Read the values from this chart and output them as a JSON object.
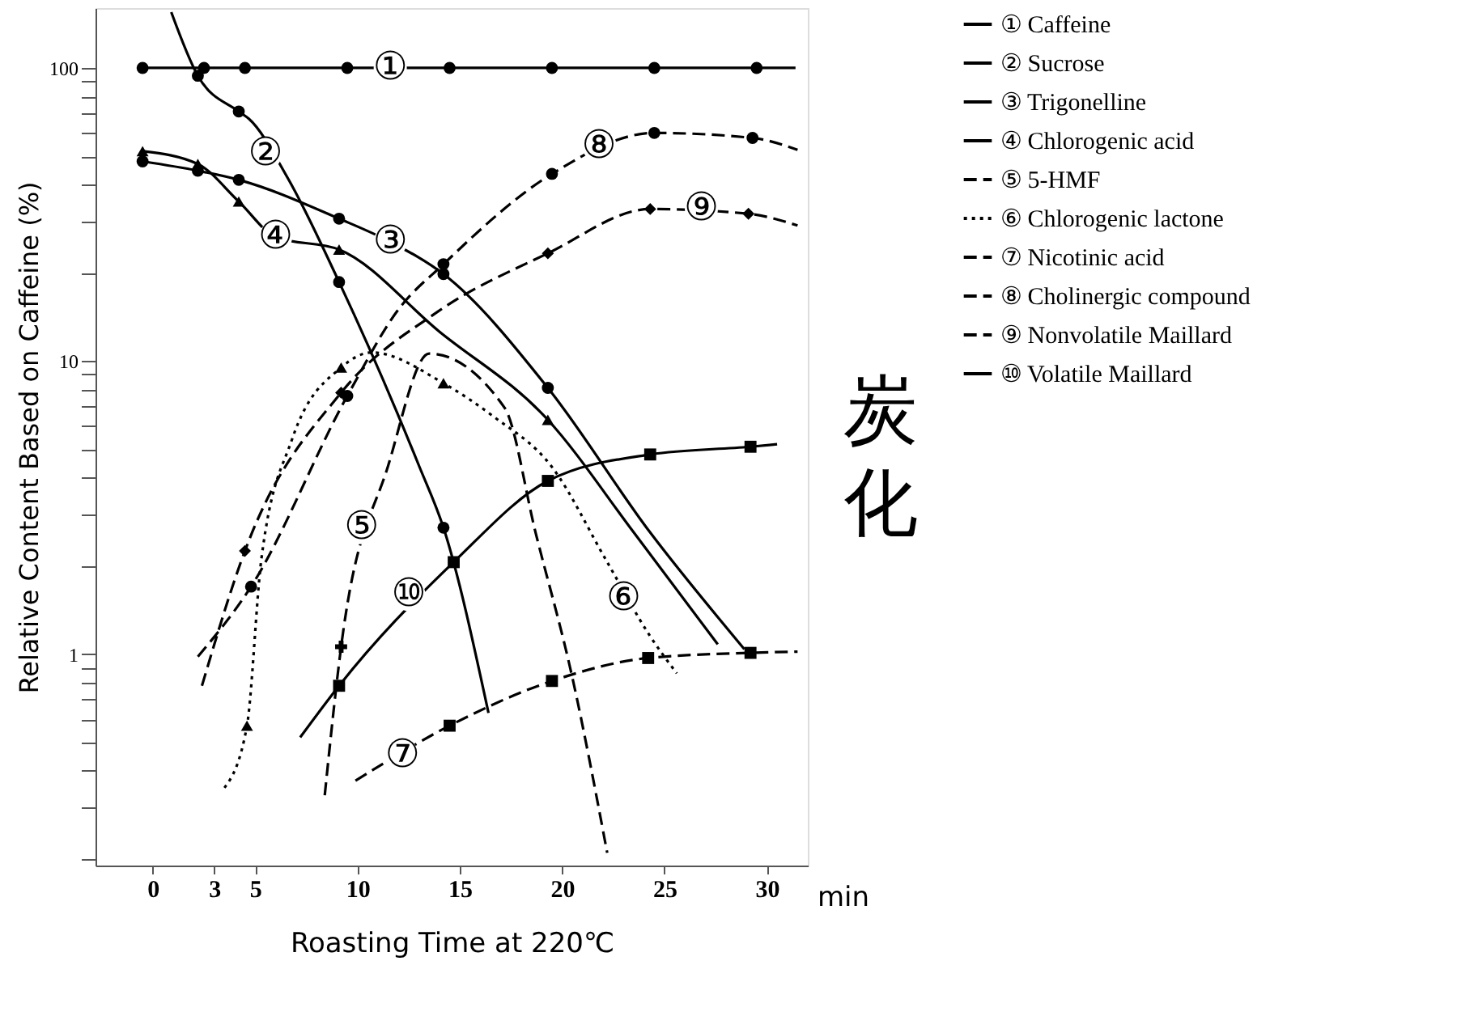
{
  "chart_data": {
    "type": "line",
    "xlabel": "Roasting Time at 220℃",
    "ylabel": "Relative Content Based on Caffeine (%)",
    "log": "y",
    "grid": false,
    "legend": "right",
    "xlim": [
      -2.8,
      32
    ],
    "xticks": [
      0,
      3,
      5,
      10,
      15,
      20,
      25,
      30
    ],
    "ylim": [
      0.19,
      160
    ],
    "yticks": [
      {
        "value": 0.2,
        "label": null
      },
      {
        "value": 0.3,
        "label": null
      },
      {
        "value": 0.4,
        "label": null
      },
      {
        "value": 0.5,
        "label": null
      },
      {
        "value": 0.6,
        "label": null
      },
      {
        "value": 0.7,
        "label": null
      },
      {
        "value": 0.8,
        "label": null
      },
      {
        "value": 0.9,
        "label": null
      },
      1,
      {
        "value": 2,
        "label": null
      },
      {
        "value": 3,
        "label": null
      },
      {
        "value": 4,
        "label": null
      },
      {
        "value": 5,
        "label": null
      },
      {
        "value": 6,
        "label": null
      },
      {
        "value": 7,
        "label": null
      },
      {
        "value": 8,
        "label": null
      },
      {
        "value": 9,
        "label": null
      },
      10,
      {
        "value": 20,
        "label": null
      },
      {
        "value": 30,
        "label": null
      },
      {
        "value": 40,
        "label": null
      },
      {
        "value": 50,
        "label": null
      },
      {
        "value": 60,
        "label": null
      },
      {
        "value": 70,
        "label": null
      },
      {
        "value": 80,
        "label": null
      },
      {
        "value": 90,
        "label": null
      },
      100
    ],
    "series": [
      {
        "name": "① Caffeine",
        "line_style": "solid",
        "color": "#000000",
        "x": [
          -0.5,
          2.5,
          4.5,
          9.5,
          14.5,
          19.5,
          24.5,
          29.5,
          31.4
        ],
        "values": [
          100,
          100,
          100,
          100,
          100,
          100,
          100,
          100,
          100
        ]
      },
      {
        "name": "② Sucrose",
        "line_style": "solid",
        "color": "#000000",
        "x": [
          0.9,
          2.2,
          4.2,
          4.7,
          6.6,
          9.1,
          13.0,
          14.2,
          16.4
        ],
        "values": [
          155,
          94,
          71,
          67,
          42,
          18.6,
          4.4,
          2.7,
          0.63
        ]
      },
      {
        "name": "③ Trigonelline",
        "line_style": "solid",
        "color": "#000000",
        "x": [
          -0.5,
          2.2,
          4.2,
          9.1,
          11.6,
          14.2,
          19.3,
          24.3,
          28.9
        ],
        "values": [
          48,
          44.6,
          41.5,
          30.6,
          25.5,
          19.8,
          8.1,
          2.6,
          1.04
        ]
      },
      {
        "name": "④ Chlorogenic acid",
        "line_style": "solid",
        "color": "#000000",
        "x": [
          -0.5,
          2.2,
          4.2,
          6.0,
          9.1,
          14.0,
          19.3,
          23.5,
          27.6
        ],
        "values": [
          52,
          47,
          35,
          26.5,
          24,
          12.6,
          6.3,
          2.6,
          1.08
        ]
      },
      {
        "name": "⑤ 5-HMF",
        "line_style": "dashed",
        "color": "#000000",
        "x": [
          8.4,
          9.2,
          11.5,
          13.5,
          17.2,
          18.7,
          20.5,
          22.2
        ],
        "values": [
          0.33,
          1.06,
          4.4,
          10.6,
          6.9,
          2.6,
          0.83,
          0.21
        ]
      },
      {
        "name": "⑥ Chlorogenic lactone",
        "line_style": "dotted",
        "color": "#000000",
        "x": [
          3.5,
          4.6,
          5.3,
          6.8,
          9.2,
          10.7,
          14.2,
          16.6,
          19.5,
          22.2,
          24.3,
          25.6
        ],
        "values": [
          0.35,
          0.57,
          2.1,
          5.4,
          9.5,
          10.7,
          8.4,
          6.5,
          4.35,
          2.06,
          1.15,
          0.86
        ]
      },
      {
        "name": "⑦ Nicotinic acid",
        "line_style": "dashed",
        "color": "#000000",
        "x": [
          9.9,
          14.5,
          19.5,
          24.2,
          29.2,
          31.5
        ],
        "values": [
          0.37,
          0.57,
          0.81,
          0.97,
          1.01,
          1.02
        ]
      },
      {
        "name": "⑧ Cholinergic compound",
        "line_style": "dashed",
        "color": "#000000",
        "x": [
          2.2,
          4.8,
          9.5,
          12.0,
          14.2,
          19.5,
          24.5,
          29.3,
          31.5
        ],
        "values": [
          0.98,
          1.7,
          7.6,
          15,
          21.4,
          43.5,
          60,
          57.7,
          52.5
        ]
      },
      {
        "name": "⑨ Nonvolatile Maillard",
        "line_style": "dashed",
        "color": "#000000",
        "x": [
          2.4,
          4.5,
          9.2,
          13.9,
          19.3,
          24.3,
          29.1,
          31.5
        ],
        "values": [
          0.78,
          2.25,
          7.8,
          14.7,
          23.3,
          33,
          31.8,
          29
        ]
      },
      {
        "name": "⑩ Volatile Maillard",
        "line_style": "solid",
        "color": "#000000",
        "x": [
          7.2,
          9.1,
          14.7,
          19.3,
          24.3,
          29.2,
          30.5
        ],
        "values": [
          0.52,
          0.78,
          2.06,
          3.9,
          4.8,
          5.1,
          5.2
        ]
      },
      {
        "type": "scatter",
        "marker": "circle",
        "color": "#000000",
        "x": [
          -0.5,
          2.5,
          4.5,
          9.5,
          14.5,
          19.5,
          24.5,
          29.5
        ],
        "values": [
          100,
          100,
          100,
          100,
          100,
          100,
          100,
          100
        ]
      },
      {
        "type": "scatter",
        "marker": "circle",
        "color": "#000000",
        "x": [
          2.2,
          4.2,
          9.1,
          14.2
        ],
        "values": [
          94,
          71,
          18.6,
          2.7
        ]
      },
      {
        "type": "scatter",
        "marker": "circle",
        "color": "#000000",
        "x": [
          -0.5,
          2.2,
          4.2,
          9.1,
          14.2,
          19.3
        ],
        "values": [
          48,
          44.6,
          41.5,
          30.6,
          19.8,
          8.1
        ]
      },
      {
        "type": "scatter",
        "marker": "triangle",
        "color": "#000000",
        "x": [
          -0.5,
          2.2,
          4.2,
          9.1,
          19.3
        ],
        "values": [
          52,
          47,
          35,
          24,
          6.3
        ]
      },
      {
        "type": "scatter",
        "marker": "cross",
        "color": "#000000",
        "x": [
          9.2
        ],
        "values": [
          1.06
        ]
      },
      {
        "type": "scatter",
        "marker": "triangle",
        "color": "#000000",
        "x": [
          4.6,
          9.2,
          14.2
        ],
        "values": [
          0.57,
          9.5,
          8.4
        ]
      },
      {
        "type": "scatter",
        "marker": "square",
        "color": "#000000",
        "x": [
          14.5,
          19.5,
          24.2,
          29.2
        ],
        "values": [
          0.57,
          0.81,
          0.97,
          1.01
        ]
      },
      {
        "type": "scatter",
        "marker": "circle",
        "color": "#000000",
        "x": [
          4.8,
          9.5,
          14.2,
          19.5,
          24.5,
          29.3
        ],
        "values": [
          1.7,
          7.6,
          21.4,
          43.5,
          60,
          57.7
        ]
      },
      {
        "type": "scatter",
        "marker": "diamond",
        "color": "#000000",
        "x": [
          4.5,
          9.2,
          19.3,
          24.3,
          29.1
        ],
        "values": [
          2.25,
          7.8,
          23.3,
          33,
          31.8
        ]
      },
      {
        "type": "scatter",
        "marker": "square",
        "color": "#000000",
        "x": [
          9.1,
          14.7,
          19.3,
          24.3,
          29.2
        ],
        "values": [
          0.78,
          2.06,
          3.9,
          4.8,
          5.1
        ]
      }
    ],
    "annotations": [
      {
        "text": "①",
        "x": 11.6,
        "y": 100
      },
      {
        "text": "②",
        "x": 5.5,
        "y": 51
      },
      {
        "text": "③",
        "x": 11.6,
        "y": 25.5
      },
      {
        "text": "④",
        "x": 6.0,
        "y": 26.5
      },
      {
        "text": "⑤",
        "x": 10.2,
        "y": 2.7
      },
      {
        "text": "⑥",
        "x": 23,
        "y": 1.55
      },
      {
        "text": "⑦",
        "x": 12.2,
        "y": 0.45
      },
      {
        "text": "⑧",
        "x": 21.8,
        "y": 54
      },
      {
        "text": "⑨",
        "x": 26.8,
        "y": 33
      },
      {
        "text": "⑩",
        "x": 12.5,
        "y": 1.6
      },
      "炭化",
      "min"
    ]
  }
}
